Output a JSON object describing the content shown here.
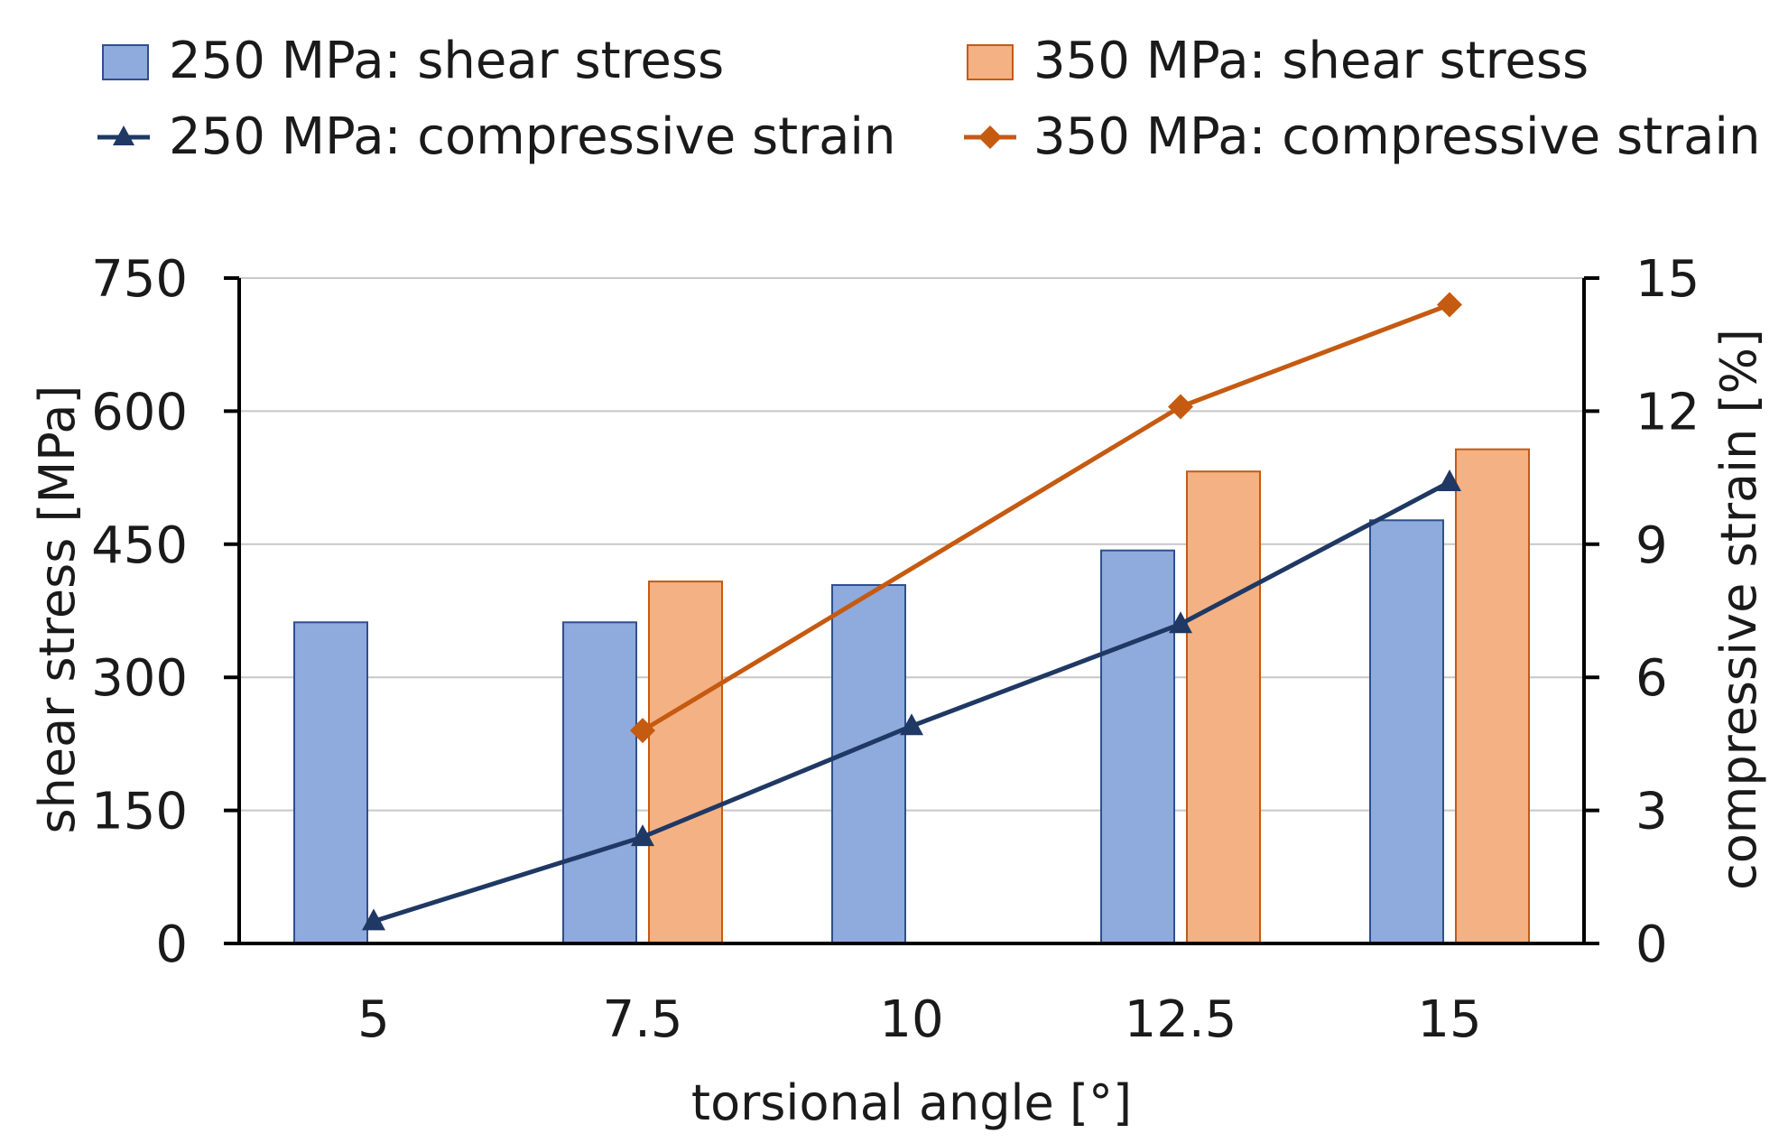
{
  "chart_data": {
    "type": "bar+line",
    "title": "",
    "categories": [
      "5",
      "7.5",
      "10",
      "12.5",
      "15"
    ],
    "xlabel": "torsional angle [°]",
    "ylabel": "shear stress [MPa]",
    "y2label": "compressive strain [%]",
    "ylim": [
      0,
      750
    ],
    "y2lim": [
      0,
      15
    ],
    "yticks": [
      "0",
      "150",
      "300",
      "450",
      "600",
      "750"
    ],
    "y2ticks": [
      "0",
      "3",
      "6",
      "9",
      "12",
      "15"
    ],
    "grid": true,
    "legend_position": "top",
    "bar_series": [
      {
        "name": "250 MPa: shear stress",
        "values": [
          362,
          362,
          404,
          443,
          477
        ],
        "color": "#8FAADC",
        "edge": "#2F4F8F"
      },
      {
        "name": "350 MPa: shear stress",
        "values": [
          null,
          408,
          null,
          532,
          557
        ],
        "color": "#F4B183",
        "edge": "#C55A11"
      }
    ],
    "line_series": [
      {
        "name": "250 MPa: compressive strain",
        "values": [
          0.5,
          2.4,
          4.9,
          7.2,
          10.4
        ],
        "color": "#1F3864",
        "marker": "triangle"
      },
      {
        "name": "350 MPa: compressive strain",
        "values": [
          null,
          4.8,
          null,
          12.1,
          14.4
        ],
        "color": "#C55A11",
        "marker": "diamond"
      }
    ]
  }
}
